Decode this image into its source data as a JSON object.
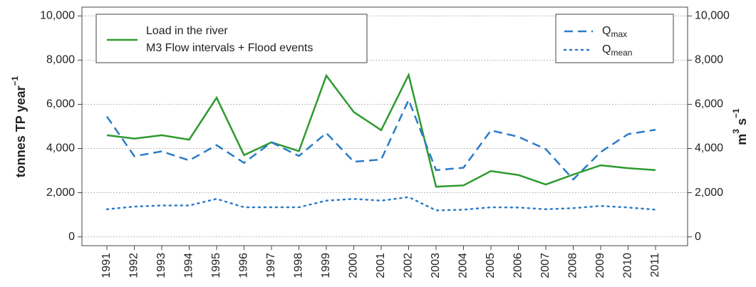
{
  "chart_data": {
    "type": "line",
    "y_label": {
      "text": "tonnes TP year",
      "sup": "−1"
    },
    "y2_label": {
      "base": "m",
      "sup": "3",
      "base2": " s",
      "sup2": "−1"
    },
    "categories": [
      "1991",
      "1992",
      "1993",
      "1994",
      "1995",
      "1996",
      "1997",
      "1998",
      "1999",
      "2000",
      "2001",
      "2002",
      "2003",
      "2004",
      "2005",
      "2006",
      "2007",
      "2008",
      "2009",
      "2010",
      "2011"
    ],
    "series": [
      {
        "name": [
          "Load in the river",
          "M3 Flow intervals + Flood events"
        ],
        "color": "#2e9a2e",
        "style": "solid",
        "axis": "y",
        "values": [
          4600,
          4450,
          4600,
          4400,
          6300,
          3700,
          4280,
          3880,
          7300,
          5650,
          4830,
          7330,
          2270,
          2330,
          2980,
          2800,
          2370,
          2820,
          3240,
          3110,
          3020
        ]
      },
      {
        "name": "Q",
        "subscript": "max",
        "color": "#2a7bc8",
        "style": "dashed",
        "axis": "y2",
        "values": [
          5450,
          3650,
          3870,
          3460,
          4150,
          3350,
          4280,
          3660,
          4700,
          3400,
          3500,
          6200,
          3020,
          3130,
          4820,
          4530,
          3970,
          2600,
          3840,
          4650,
          4850
        ]
      },
      {
        "name": "Q",
        "subscript": "mean",
        "color": "#2a7bc8",
        "style": "dotted",
        "axis": "y2",
        "values": [
          1250,
          1370,
          1420,
          1420,
          1720,
          1340,
          1340,
          1340,
          1640,
          1720,
          1640,
          1800,
          1200,
          1230,
          1340,
          1330,
          1250,
          1300,
          1400,
          1330,
          1230
        ]
      }
    ],
    "ylim": [
      -400,
      10400
    ],
    "yticks": [
      0,
      {
        "value": 2000,
        "label": "2,000"
      },
      {
        "value": 4000,
        "label": "4,000"
      },
      {
        "value": 6000,
        "label": "6,000"
      },
      {
        "value": 8000,
        "label": "8,000"
      },
      {
        "value": 10000,
        "label": "10,000"
      }
    ],
    "y2lim": [
      -400,
      10400
    ],
    "y2ticks": [
      0,
      {
        "value": 2000,
        "label": "2,000"
      },
      {
        "value": 4000,
        "label": "4,000"
      },
      {
        "value": 6000,
        "label": "6,000"
      },
      {
        "value": 8000,
        "label": "8,000"
      },
      {
        "value": 10000,
        "label": "10,000"
      }
    ],
    "grid": true
  }
}
